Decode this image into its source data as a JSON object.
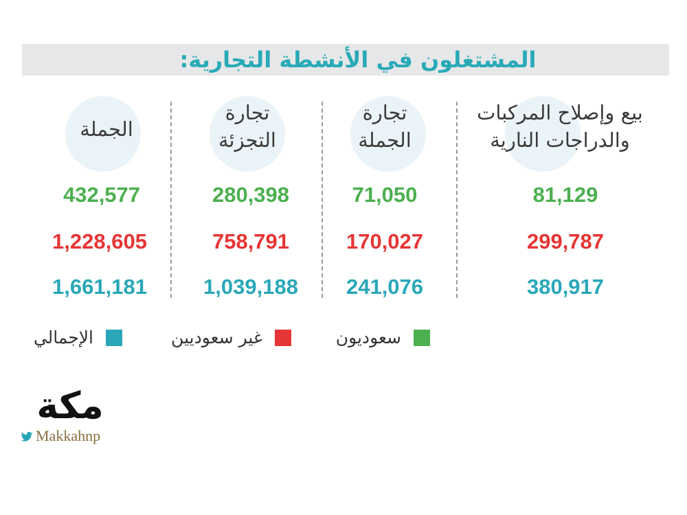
{
  "title": "المشتغلون في الأنشطة التجارية:",
  "colors": {
    "saudi": "#4caf50",
    "non_saudi": "#e63535",
    "total": "#29a7b8",
    "title": "#29aab7",
    "handle": "#8a6e3f"
  },
  "chart_data": {
    "type": "table",
    "title": "المشتغلون في الأنشطة التجارية:",
    "categories": [
      {
        "line1": "بيع وإصلاح المركبات",
        "line2": "والدراجات النارية"
      },
      {
        "line1": "تجارة",
        "line2": "الجملة"
      },
      {
        "line1": "تجارة",
        "line2": "التجزئة"
      },
      {
        "line1": "الجملة",
        "line2": ""
      }
    ],
    "series": [
      {
        "name": "سعوديون",
        "color": "#4caf50",
        "values": [
          "81,129",
          "71,050",
          "280,398",
          "432,577"
        ]
      },
      {
        "name": "غير سعوديين",
        "color": "#e63535",
        "values": [
          "299,787",
          "170,027",
          "758,791",
          "1,228,605"
        ]
      },
      {
        "name": "الإجمالي",
        "color": "#29a7b8",
        "values": [
          "380,917",
          "241,076",
          "1,039,188",
          "1,661,181"
        ]
      }
    ],
    "legend": [
      {
        "label": "سعوديون",
        "color": "#4caf50"
      },
      {
        "label": "غير سعوديين",
        "color": "#e63535"
      },
      {
        "label": "الإجمالي",
        "color": "#29a7b8"
      }
    ]
  },
  "logo": {
    "text": "مكة",
    "handle": "Makkahnp",
    "bird_icon": "twitter-bird-icon"
  }
}
